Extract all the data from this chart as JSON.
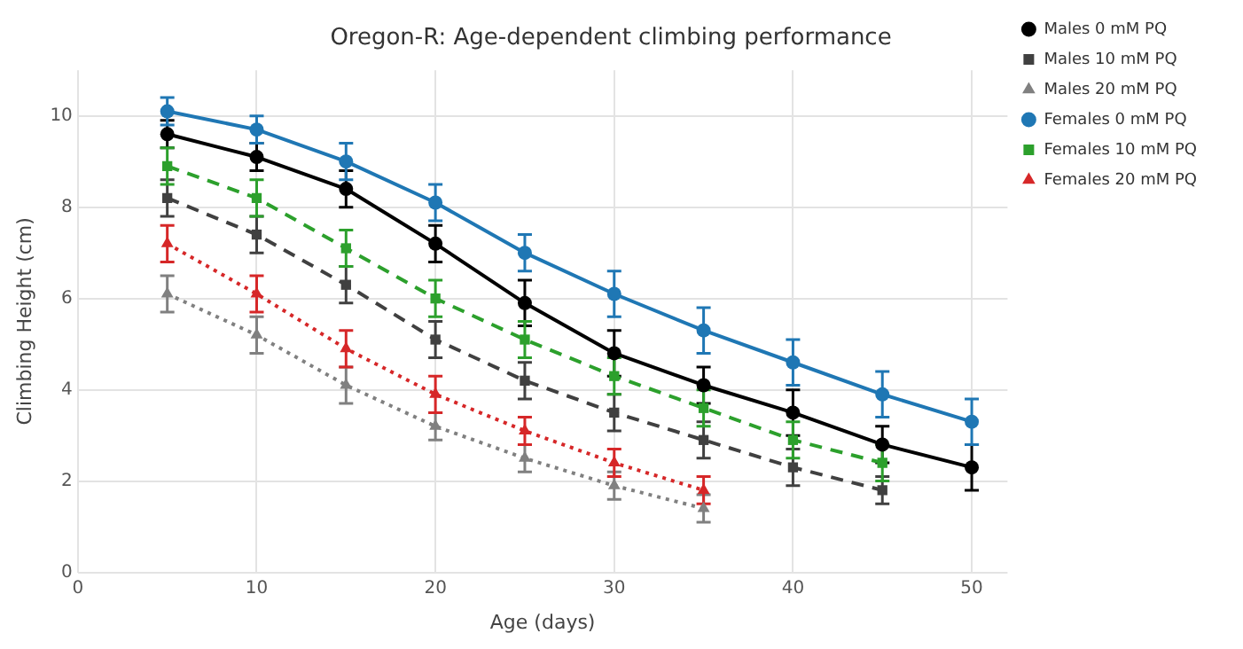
{
  "chart_data": {
    "type": "line",
    "title": "Oregon-R: Age-dependent climbing performance",
    "xlabel": "Age (days)",
    "ylabel": "Climbing Height (cm)",
    "xlim": [
      0,
      52
    ],
    "xticks": [
      0,
      10,
      20,
      30,
      40,
      50
    ],
    "ylim": [
      0,
      11
    ],
    "yticks": [
      0,
      2,
      4,
      6,
      8,
      10
    ],
    "grid": true,
    "legend": "top right",
    "series": [
      {
        "name": "Males 0 mM PQ",
        "color": "#000000",
        "marker": "circle",
        "line_style": "solid",
        "x": [
          5,
          10,
          15,
          20,
          25,
          30,
          35,
          40,
          45,
          50
        ],
        "values": [
          9.6,
          9.1,
          8.4,
          7.2,
          5.9,
          4.8,
          4.1,
          3.5,
          2.8,
          2.3
        ],
        "errors": [
          0.3,
          0.3,
          0.4,
          0.4,
          0.5,
          0.5,
          0.4,
          0.5,
          0.4,
          0.5
        ]
      },
      {
        "name": "Males 10 mM PQ",
        "color": "#404040",
        "marker": "square",
        "line_style": "dashed",
        "x": [
          5,
          10,
          15,
          20,
          25,
          30,
          35,
          40,
          45
        ],
        "values": [
          8.2,
          7.4,
          6.3,
          5.1,
          4.2,
          3.5,
          2.9,
          2.3,
          1.8
        ],
        "errors": [
          0.4,
          0.4,
          0.4,
          0.4,
          0.4,
          0.4,
          0.4,
          0.4,
          0.3
        ]
      },
      {
        "name": "Males 20 mM PQ",
        "color": "#808080",
        "marker": "triangle",
        "line_style": "dotted",
        "x": [
          5,
          10,
          15,
          20,
          25,
          30,
          35
        ],
        "values": [
          6.1,
          5.2,
          4.1,
          3.2,
          2.5,
          1.9,
          1.4
        ],
        "errors": [
          0.4,
          0.4,
          0.4,
          0.3,
          0.3,
          0.3,
          0.3
        ]
      },
      {
        "name": "Females 0 mM PQ",
        "color": "#1f77b4",
        "marker": "circle",
        "line_style": "solid",
        "x": [
          5,
          10,
          15,
          20,
          25,
          30,
          35,
          40,
          45,
          50
        ],
        "values": [
          10.1,
          9.7,
          9.0,
          8.1,
          7.0,
          6.1,
          5.3,
          4.6,
          3.9,
          3.3
        ],
        "errors": [
          0.3,
          0.3,
          0.4,
          0.4,
          0.4,
          0.5,
          0.5,
          0.5,
          0.5,
          0.5
        ]
      },
      {
        "name": "Females 10 mM PQ",
        "color": "#2ca02c",
        "marker": "square",
        "line_style": "dashed",
        "x": [
          5,
          10,
          15,
          20,
          25,
          30,
          35,
          40,
          45
        ],
        "values": [
          8.9,
          8.2,
          7.1,
          6.0,
          5.1,
          4.3,
          3.6,
          2.9,
          2.4
        ],
        "errors": [
          0.4,
          0.4,
          0.4,
          0.4,
          0.4,
          0.4,
          0.4,
          0.4,
          0.4
        ]
      },
      {
        "name": "Females 20 mM PQ",
        "color": "#d62728",
        "marker": "triangle",
        "line_style": "dotted",
        "x": [
          5,
          10,
          15,
          20,
          25,
          30,
          35
        ],
        "values": [
          7.2,
          6.1,
          4.9,
          3.9,
          3.1,
          2.4,
          1.8
        ],
        "errors": [
          0.4,
          0.4,
          0.4,
          0.4,
          0.3,
          0.3,
          0.3
        ]
      }
    ]
  }
}
